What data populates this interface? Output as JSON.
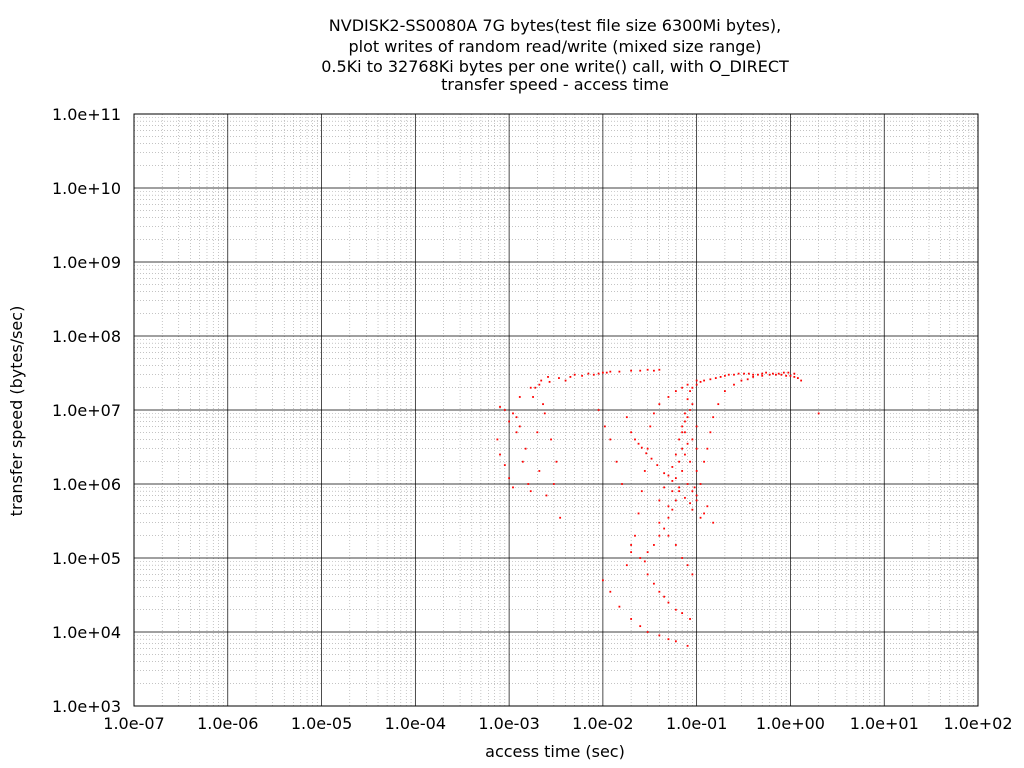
{
  "chart_data": {
    "type": "scatter",
    "title_lines": [
      "NVDISK2-SS0080A 7G bytes(test file size 6300Mi bytes),",
      "plot writes of random read/write (mixed size range)",
      "0.5Ki to 32768Ki bytes per one write() call, with O_DIRECT",
      "transfer speed - access time"
    ],
    "xlabel": "access time (sec)",
    "ylabel": "transfer speed (bytes/sec)",
    "x_scale": "log",
    "y_scale": "log",
    "xlim": [
      1e-07,
      100
    ],
    "ylim": [
      1000,
      100000000000.0
    ],
    "x_tick_labels": [
      "1.0e-07",
      "1.0e-06",
      "1.0e-05",
      "1.0e-04",
      "1.0e-03",
      "1.0e-02",
      "1.0e-01",
      "1.0e+00",
      "1.0e+01",
      "1.0e+02"
    ],
    "y_tick_labels": [
      "1.0e+03",
      "1.0e+04",
      "1.0e+05",
      "1.0e+06",
      "1.0e+07",
      "1.0e+08",
      "1.0e+09",
      "1.0e+10",
      "1.0e+11"
    ],
    "grid": true,
    "legend": "none",
    "series": [
      {
        "color": "#ff0000",
        "points": [
          [
            0.00075,
            4000000
          ],
          [
            0.0008,
            2500000
          ],
          [
            0.0009,
            1800000
          ],
          [
            0.001,
            1200000
          ],
          [
            0.0011,
            900000
          ],
          [
            0.0012,
            8000000
          ],
          [
            0.0013,
            6000000
          ],
          [
            0.0015,
            3000000
          ],
          [
            0.0016,
            1000000
          ],
          [
            0.0017,
            800000
          ],
          [
            0.0009,
            10000000
          ],
          [
            0.0008,
            11000000
          ],
          [
            0.0011,
            9000000
          ],
          [
            0.001,
            7000000
          ],
          [
            0.0012,
            5000000
          ],
          [
            0.0014,
            2000000
          ],
          [
            0.0018,
            15000000
          ],
          [
            0.0019,
            20000000
          ],
          [
            0.002,
            5000000
          ],
          [
            0.0021,
            1500000
          ],
          [
            0.0022,
            25000000
          ],
          [
            0.0023,
            12000000
          ],
          [
            0.0024,
            9000000
          ],
          [
            0.0025,
            700000
          ],
          [
            0.0026,
            28000000
          ],
          [
            0.0028,
            4000000
          ],
          [
            0.003,
            1000000
          ],
          [
            0.0032,
            2000000
          ],
          [
            0.0035,
            350000
          ],
          [
            0.004,
            25000000
          ],
          [
            0.0045,
            28000000
          ],
          [
            0.005,
            30000000
          ],
          [
            0.006,
            29000000
          ],
          [
            0.007,
            31000000
          ],
          [
            0.008,
            30000000
          ],
          [
            0.01,
            32000000
          ],
          [
            0.012,
            33000000
          ],
          [
            0.015,
            33000000
          ],
          [
            0.02,
            34000000
          ],
          [
            0.025,
            34000000
          ],
          [
            0.03,
            35000000
          ],
          [
            0.035,
            34000000
          ],
          [
            0.04,
            35000000
          ],
          [
            0.009,
            31000000
          ],
          [
            0.011,
            32000000
          ],
          [
            0.0013,
            15000000
          ],
          [
            0.0017,
            20000000
          ],
          [
            0.0021,
            22000000
          ],
          [
            0.0027,
            24000000
          ],
          [
            0.0034,
            27000000
          ],
          [
            0.01,
            50000
          ],
          [
            0.012,
            35000
          ],
          [
            0.015,
            22000
          ],
          [
            0.02,
            15000
          ],
          [
            0.025,
            12000
          ],
          [
            0.03,
            10000
          ],
          [
            0.04,
            9000
          ],
          [
            0.05,
            8000
          ],
          [
            0.06,
            7500
          ],
          [
            0.08,
            6500
          ],
          [
            0.018,
            80000
          ],
          [
            0.02,
            120000
          ],
          [
            0.022,
            200000
          ],
          [
            0.024,
            400000
          ],
          [
            0.026,
            800000
          ],
          [
            0.028,
            1500000
          ],
          [
            0.03,
            3000000
          ],
          [
            0.032,
            6000000
          ],
          [
            0.035,
            9000000
          ],
          [
            0.04,
            12000000
          ],
          [
            0.05,
            15000000
          ],
          [
            0.06,
            18000000
          ],
          [
            0.07,
            20000000
          ],
          [
            0.08,
            22000000
          ],
          [
            0.1,
            25000000
          ],
          [
            0.02,
            150000
          ],
          [
            0.025,
            100000
          ],
          [
            0.03,
            60000
          ],
          [
            0.035,
            45000
          ],
          [
            0.04,
            35000
          ],
          [
            0.045,
            30000
          ],
          [
            0.05,
            25000
          ],
          [
            0.06,
            20000
          ],
          [
            0.07,
            18000
          ],
          [
            0.085,
            15000
          ],
          [
            0.04,
            300000
          ],
          [
            0.05,
            500000
          ],
          [
            0.055,
            800000
          ],
          [
            0.06,
            1200000
          ],
          [
            0.065,
            2000000
          ],
          [
            0.07,
            3000000
          ],
          [
            0.075,
            5000000
          ],
          [
            0.08,
            8000000
          ],
          [
            0.085,
            10000000
          ],
          [
            0.09,
            12000000
          ],
          [
            0.05,
            200000
          ],
          [
            0.06,
            150000
          ],
          [
            0.07,
            100000
          ],
          [
            0.08,
            80000
          ],
          [
            0.09,
            60000
          ],
          [
            0.1,
            700000
          ],
          [
            0.11,
            1000000
          ],
          [
            0.12,
            2000000
          ],
          [
            0.13,
            3000000
          ],
          [
            0.14,
            5000000
          ],
          [
            0.15,
            8000000
          ],
          [
            0.17,
            12000000
          ],
          [
            0.2,
            18000000
          ],
          [
            0.25,
            22000000
          ],
          [
            0.3,
            25000000
          ],
          [
            0.35,
            26000000
          ],
          [
            0.4,
            28000000
          ],
          [
            0.5,
            29000000
          ],
          [
            0.6,
            30000000
          ],
          [
            0.7,
            30000000
          ],
          [
            0.8,
            30000000
          ],
          [
            0.9,
            29000000
          ],
          [
            1.0,
            29000000
          ],
          [
            1.1,
            28000000
          ],
          [
            1.2,
            27000000
          ],
          [
            1.3,
            25000000
          ],
          [
            1.1,
            31000000
          ],
          [
            0.95,
            32000000
          ],
          [
            2.0,
            9000000
          ],
          [
            0.15,
            300000
          ],
          [
            0.13,
            500000
          ],
          [
            0.12,
            400000
          ],
          [
            0.11,
            350000
          ],
          [
            0.09,
            450000
          ],
          [
            0.085,
            550000
          ],
          [
            0.075,
            650000
          ],
          [
            0.065,
            900000
          ],
          [
            0.055,
            1100000
          ],
          [
            0.045,
            1400000
          ],
          [
            0.038,
            1800000
          ],
          [
            0.033,
            2200000
          ],
          [
            0.029,
            2600000
          ],
          [
            0.026,
            3100000
          ],
          [
            0.024,
            3500000
          ],
          [
            0.022,
            4000000
          ],
          [
            0.02,
            5000000
          ],
          [
            0.018,
            8000000
          ],
          [
            0.016,
            1000000
          ],
          [
            0.014,
            2000000
          ],
          [
            0.012,
            4000000
          ],
          [
            0.0105,
            6000000
          ],
          [
            0.009,
            10000000
          ],
          [
            0.04,
            600000
          ],
          [
            0.045,
            900000
          ],
          [
            0.05,
            1300000
          ],
          [
            0.055,
            1700000
          ],
          [
            0.06,
            2500000
          ],
          [
            0.065,
            4000000
          ],
          [
            0.07,
            6000000
          ],
          [
            0.075,
            9000000
          ],
          [
            0.08,
            14000000
          ],
          [
            0.085,
            18000000
          ],
          [
            0.09,
            20000000
          ],
          [
            0.1,
            22000000
          ],
          [
            0.11,
            24000000
          ],
          [
            0.12,
            25000000
          ],
          [
            0.14,
            26000000
          ],
          [
            0.16,
            27000000
          ],
          [
            0.18,
            28000000
          ],
          [
            0.2,
            29000000
          ],
          [
            0.22,
            30000000
          ],
          [
            0.25,
            30000000
          ],
          [
            0.28,
            31000000
          ],
          [
            0.32,
            31000000
          ],
          [
            0.36,
            31000000
          ],
          [
            0.4,
            30000000
          ],
          [
            0.45,
            30000000
          ],
          [
            0.5,
            31000000
          ],
          [
            0.55,
            32000000
          ],
          [
            0.65,
            31000000
          ],
          [
            0.75,
            31000000
          ],
          [
            0.85,
            32000000
          ],
          [
            0.07,
            5000000
          ],
          [
            0.075,
            7000000
          ],
          [
            0.08,
            1000000
          ],
          [
            0.09,
            800000
          ],
          [
            0.1,
            600000
          ],
          [
            0.095,
            900000
          ],
          [
            0.1,
            1500000
          ],
          [
            0.1,
            3000000
          ],
          [
            0.1,
            6000000
          ],
          [
            0.09,
            4000000
          ],
          [
            0.085,
            2000000
          ],
          [
            0.08,
            3500000
          ],
          [
            0.075,
            2500000
          ],
          [
            0.07,
            1500000
          ],
          [
            0.065,
            800000
          ],
          [
            0.06,
            600000
          ],
          [
            0.055,
            450000
          ],
          [
            0.05,
            350000
          ],
          [
            0.045,
            250000
          ],
          [
            0.04,
            200000
          ],
          [
            0.035,
            150000
          ],
          [
            0.03,
            120000
          ],
          [
            0.028,
            90000
          ]
        ]
      }
    ]
  }
}
